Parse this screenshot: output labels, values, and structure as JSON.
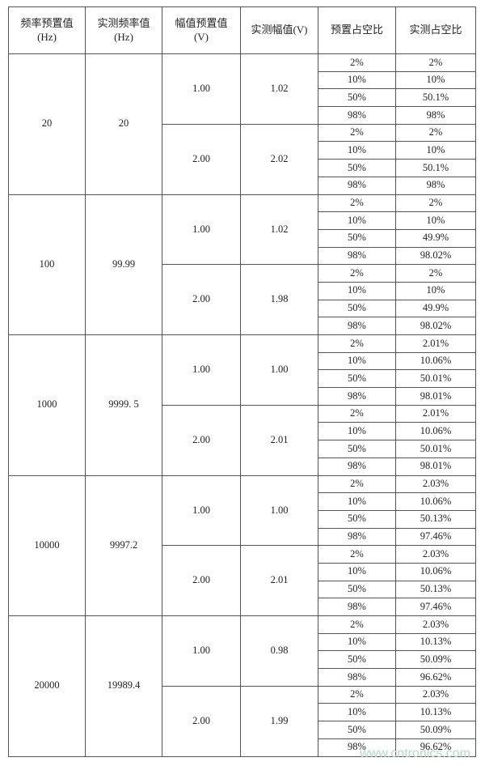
{
  "header": [
    [
      "频率预置值",
      "(Hz)"
    ],
    [
      "实测频率值",
      "(Hz)"
    ],
    [
      "幅值预置值",
      "(V)"
    ],
    [
      "实测幅值(V)"
    ],
    [
      "预置占空比"
    ],
    [
      "实测占空比"
    ]
  ],
  "groups": [
    {
      "freq_set": "20",
      "freq_measured": "20",
      "amplitudes": [
        {
          "amp_set": "1.00",
          "amp_measured": "1.02",
          "duty": [
            [
              "2%",
              "2%"
            ],
            [
              "10%",
              "10%"
            ],
            [
              "50%",
              "50.1%"
            ],
            [
              "98%",
              "98%"
            ]
          ]
        },
        {
          "amp_set": "2.00",
          "amp_measured": "2.02",
          "duty": [
            [
              "2%",
              "2%"
            ],
            [
              "10%",
              "10%"
            ],
            [
              "50%",
              "50.1%"
            ],
            [
              "98%",
              "98%"
            ]
          ]
        }
      ]
    },
    {
      "freq_set": "100",
      "freq_measured": "99.99",
      "amplitudes": [
        {
          "amp_set": "1.00",
          "amp_measured": "1.02",
          "duty": [
            [
              "2%",
              "2%"
            ],
            [
              "10%",
              "10%"
            ],
            [
              "50%",
              "49.9%"
            ],
            [
              "98%",
              "98.02%"
            ]
          ]
        },
        {
          "amp_set": "2.00",
          "amp_measured": "1.98",
          "duty": [
            [
              "2%",
              "2%"
            ],
            [
              "10%",
              "10%"
            ],
            [
              "50%",
              "49.9%"
            ],
            [
              "98%",
              "98.02%"
            ]
          ]
        }
      ]
    },
    {
      "freq_set": "1000",
      "freq_measured": "9999. 5",
      "amplitudes": [
        {
          "amp_set": "1.00",
          "amp_measured": "1.00",
          "duty": [
            [
              "2%",
              "2.01%"
            ],
            [
              "10%",
              "10.06%"
            ],
            [
              "50%",
              "50.01%"
            ],
            [
              "98%",
              "98.01%"
            ]
          ]
        },
        {
          "amp_set": "2.00",
          "amp_measured": "2.01",
          "duty": [
            [
              "2%",
              "2.01%"
            ],
            [
              "10%",
              "10.06%"
            ],
            [
              "50%",
              "50.01%"
            ],
            [
              "98%",
              "98.01%"
            ]
          ]
        }
      ]
    },
    {
      "freq_set": "10000",
      "freq_measured": "9997.2",
      "amplitudes": [
        {
          "amp_set": "1.00",
          "amp_measured": "1.00",
          "duty": [
            [
              "2%",
              "2.03%"
            ],
            [
              "10%",
              "10.06%"
            ],
            [
              "50%",
              "50.13%"
            ],
            [
              "98%",
              "97.46%"
            ]
          ]
        },
        {
          "amp_set": "2.00",
          "amp_measured": "2.01",
          "duty": [
            [
              "2%",
              "2.03%"
            ],
            [
              "10%",
              "10.06%"
            ],
            [
              "50%",
              "50.13%"
            ],
            [
              "98%",
              "97.46%"
            ]
          ]
        }
      ]
    },
    {
      "freq_set": "20000",
      "freq_measured": "19989.4",
      "amplitudes": [
        {
          "amp_set": "1.00",
          "amp_measured": "0.98",
          "duty": [
            [
              "2%",
              "2.03%"
            ],
            [
              "10%",
              "10.13%"
            ],
            [
              "50%",
              "50.09%"
            ],
            [
              "98%",
              "96.62%"
            ]
          ]
        },
        {
          "amp_set": "2.00",
          "amp_measured": "1.99",
          "duty": [
            [
              "2%",
              "2.03%"
            ],
            [
              "10%",
              "10.13%"
            ],
            [
              "50%",
              "50.09%"
            ],
            [
              "98%",
              "96.62%"
            ]
          ]
        }
      ]
    }
  ],
  "watermark": "www.cntronics.com"
}
